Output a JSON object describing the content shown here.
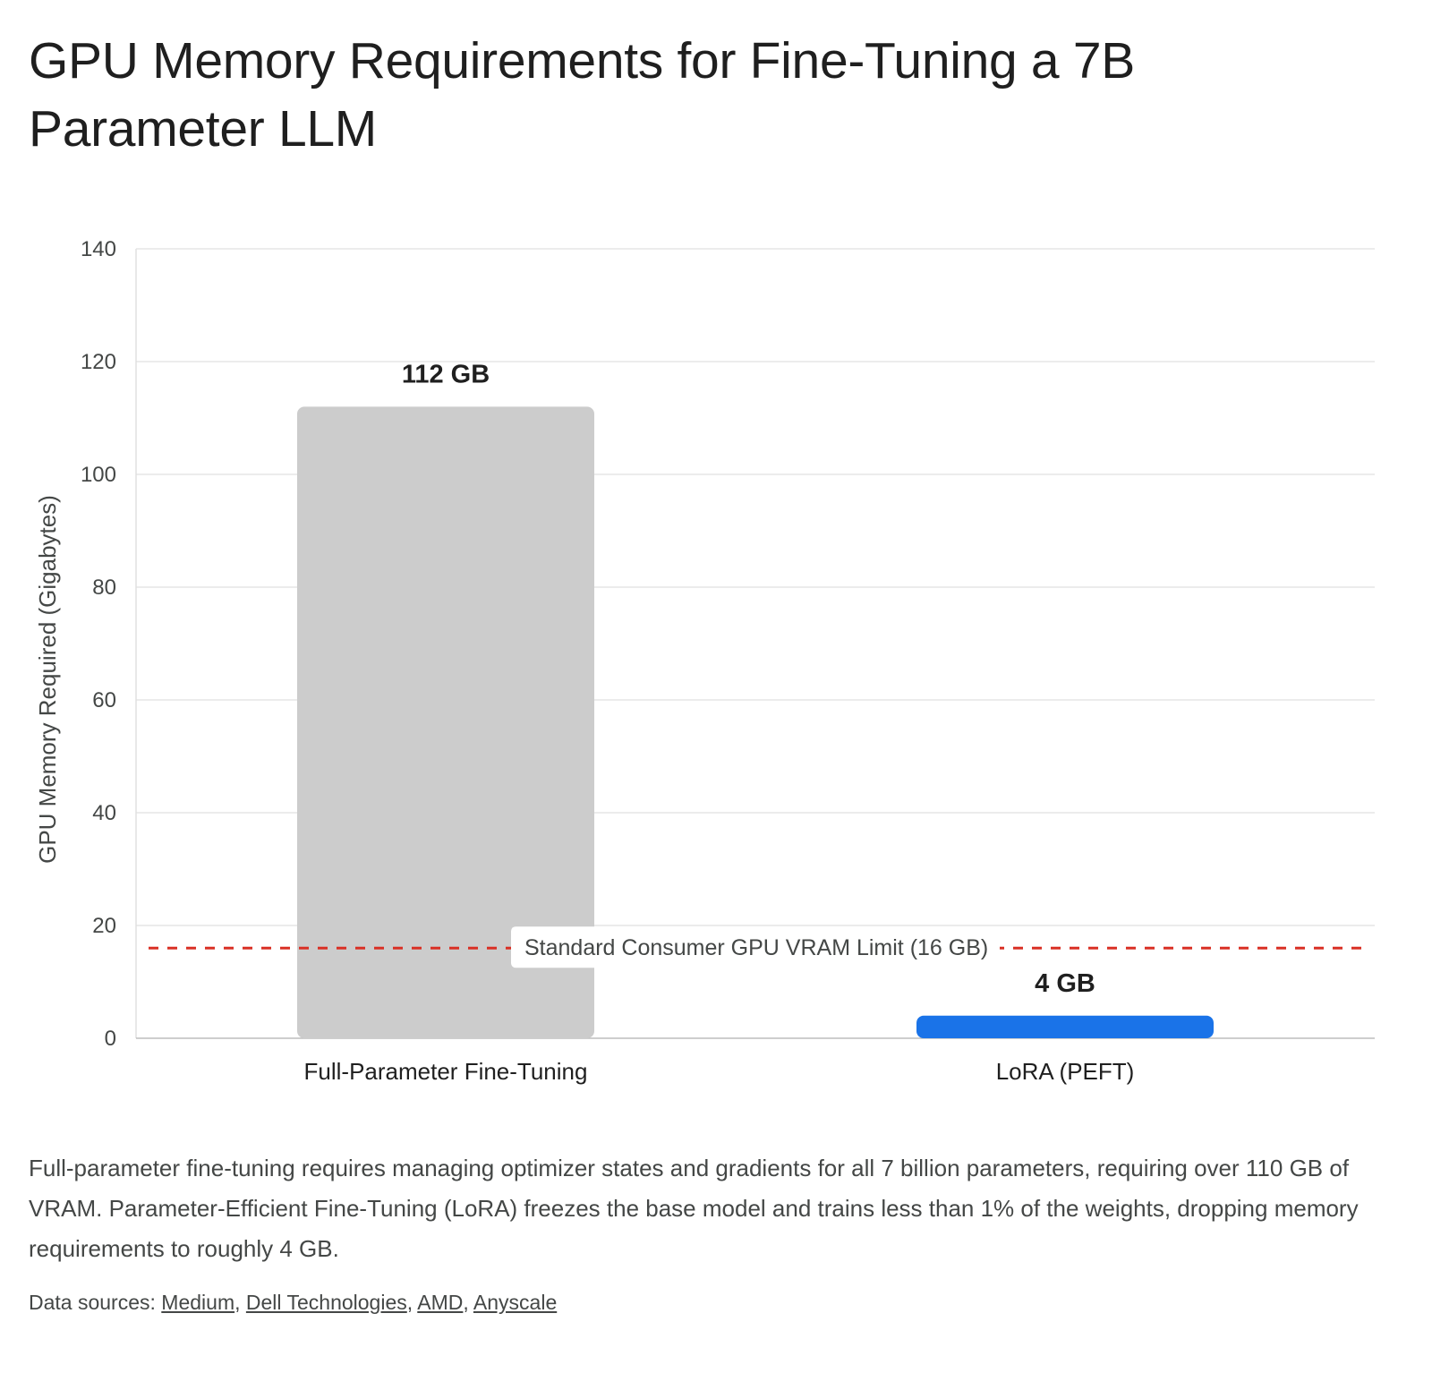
{
  "title": "GPU Memory Requirements for Fine-Tuning a 7B Parameter LLM",
  "chart_data": {
    "type": "bar",
    "categories": [
      "Full-Parameter Fine-Tuning",
      "LoRA (PEFT)"
    ],
    "values": [
      112,
      4
    ],
    "data_labels": [
      "112 GB",
      "4 GB"
    ],
    "bar_colors": [
      "#cccccc",
      "#1a73e8"
    ],
    "title": "GPU Memory Requirements for Fine-Tuning a 7B Parameter LLM",
    "xlabel": "",
    "ylabel": "GPU Memory Required (Gigabytes)",
    "ylim": [
      0,
      140
    ],
    "yticks": [
      0,
      20,
      40,
      60,
      80,
      100,
      120,
      140
    ],
    "grid": true,
    "legend": "none",
    "reference_line": {
      "value": 16,
      "label": "Standard Consumer GPU VRAM Limit (16 GB)",
      "color": "#d93025",
      "style": "dashed"
    }
  },
  "description": "Full-parameter fine-tuning requires managing optimizer states and gradients for all 7 billion parameters, requiring over 110 GB of VRAM. Parameter-Efficient Fine-Tuning (LoRA) freezes the base model and trains less than 1% of the weights, dropping memory requirements to roughly 4 GB.",
  "sources": {
    "prefix": "Data sources: ",
    "links": [
      "Medium",
      "Dell Technologies",
      "AMD",
      "Anyscale"
    ],
    "separator": ", "
  }
}
